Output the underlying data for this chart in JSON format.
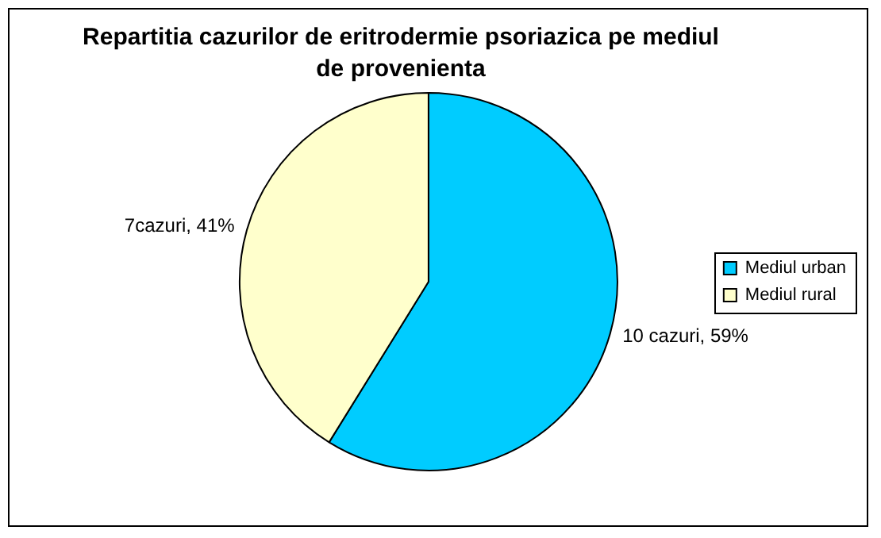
{
  "chart_data": {
    "type": "pie",
    "title": "Repartitia cazurilor de eritrodermie psoriazica pe mediul de provenienta",
    "categories": [
      "Mediul urban",
      "Mediul rural"
    ],
    "values": [
      10,
      7
    ],
    "value_labels": [
      "10 cazuri, 59%",
      "7cazuri, 41%"
    ],
    "colors": [
      "#00ccff",
      "#ffffcc"
    ],
    "legend": "right"
  }
}
